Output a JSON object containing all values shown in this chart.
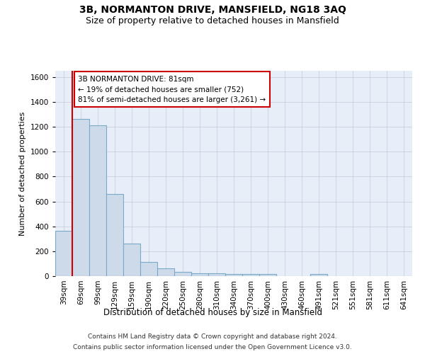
{
  "title_line1": "3B, NORMANTON DRIVE, MANSFIELD, NG18 3AQ",
  "title_line2": "Size of property relative to detached houses in Mansfield",
  "xlabel": "Distribution of detached houses by size in Mansfield",
  "ylabel": "Number of detached properties",
  "categories": [
    "39sqm",
    "69sqm",
    "99sqm",
    "129sqm",
    "159sqm",
    "190sqm",
    "220sqm",
    "250sqm",
    "280sqm",
    "310sqm",
    "340sqm",
    "370sqm",
    "400sqm",
    "430sqm",
    "460sqm",
    "491sqm",
    "521sqm",
    "551sqm",
    "581sqm",
    "611sqm",
    "641sqm"
  ],
  "values": [
    365,
    1265,
    1210,
    660,
    260,
    115,
    65,
    35,
    20,
    20,
    15,
    15,
    15,
    0,
    0,
    15,
    0,
    0,
    0,
    0,
    0
  ],
  "bar_color": "#ccdaea",
  "bar_edgecolor": "#7aaac8",
  "vline_x_index": 1,
  "vline_color": "#cc0000",
  "annotation_text": "3B NORMANTON DRIVE: 81sqm\n← 19% of detached houses are smaller (752)\n81% of semi-detached houses are larger (3,261) →",
  "annotation_box_facecolor": "#ffffff",
  "annotation_box_edgecolor": "#cc0000",
  "ylim": [
    0,
    1650
  ],
  "yticks": [
    0,
    200,
    400,
    600,
    800,
    1000,
    1200,
    1400,
    1600
  ],
  "grid_color": "#c8d0e0",
  "background_color": "#e8eef8",
  "footer_line1": "Contains HM Land Registry data © Crown copyright and database right 2024.",
  "footer_line2": "Contains public sector information licensed under the Open Government Licence v3.0.",
  "title_fontsize": 10,
  "subtitle_fontsize": 9,
  "axis_label_fontsize": 8,
  "tick_fontsize": 7.5,
  "footer_fontsize": 6.5
}
